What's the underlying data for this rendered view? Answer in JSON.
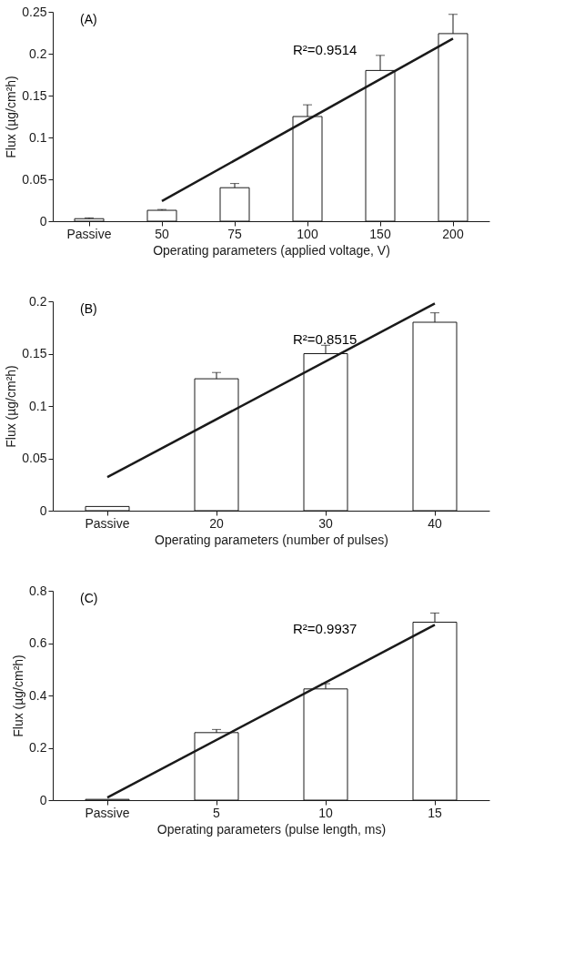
{
  "chart_data": [
    {
      "type": "bar",
      "categories": [
        "Passive",
        "50",
        "75",
        "100",
        "150",
        "200"
      ],
      "xlabel": "Operating parameters (applied voltage, V)",
      "ylabel": "Flux (µg/cm²h)",
      "ylim": [
        0,
        0.25
      ],
      "yticks": [
        0,
        0.05,
        0.1,
        0.15,
        0.2,
        0.25
      ],
      "grid": false,
      "series": [
        {
          "type": "bar",
          "color": "#ffffff",
          "values": [
            0.003,
            0.013,
            0.04,
            0.125,
            0.18,
            0.224
          ],
          "errors": [
            [
              0.003,
              0.004
            ],
            [
              0.013,
              0.014
            ],
            [
              0.04,
              0.045
            ],
            [
              0.125,
              0.139
            ],
            [
              0.18,
              0.198
            ],
            [
              0.224,
              0.247
            ]
          ]
        },
        {
          "type": "line",
          "color": "#1a1a1a",
          "x": [
            "50",
            "200"
          ],
          "values": [
            0.024,
            0.218
          ]
        }
      ],
      "annotations": [
        "(A)",
        "R²=0.9514"
      ]
    },
    {
      "type": "bar",
      "categories": [
        "Passive",
        "20",
        "30",
        "40"
      ],
      "xlabel": "Operating parameters (number of pulses)",
      "ylabel": "Flux (µg/cm²h)",
      "ylim": [
        0,
        0.2
      ],
      "yticks": [
        0,
        0.05,
        0.1,
        0.15,
        0.2
      ],
      "grid": false,
      "series": [
        {
          "type": "bar",
          "color": "#ffffff",
          "values": [
            0.004,
            0.126,
            0.15,
            0.18
          ],
          "errors": [
            null,
            [
              0.126,
              0.132
            ],
            [
              0.15,
              0.158
            ],
            [
              0.18,
              0.189
            ]
          ]
        },
        {
          "type": "line",
          "color": "#1a1a1a",
          "x": [
            "Passive",
            "40"
          ],
          "values": [
            0.032,
            0.198
          ]
        }
      ],
      "annotations": [
        "(B)",
        "R²=0.8515"
      ]
    },
    {
      "type": "bar",
      "categories": [
        "Passive",
        "5",
        "10",
        "15"
      ],
      "xlabel": "Operating parameters (pulse length, ms)",
      "ylabel": "Flux (µg/cm²h)",
      "ylim": [
        0,
        0.8
      ],
      "yticks": [
        0,
        0.2,
        0.4,
        0.6,
        0.8
      ],
      "grid": false,
      "series": [
        {
          "type": "bar",
          "color": "#ffffff",
          "values": [
            0.003,
            0.258,
            0.425,
            0.68
          ],
          "errors": [
            null,
            [
              0.258,
              0.27
            ],
            [
              0.425,
              0.445
            ],
            [
              0.68,
              0.715
            ]
          ]
        },
        {
          "type": "line",
          "color": "#1a1a1a",
          "x": [
            "Passive",
            "15"
          ],
          "values": [
            0.01,
            0.67
          ]
        }
      ],
      "annotations": [
        "(C)",
        "R²=0.9937"
      ]
    }
  ]
}
